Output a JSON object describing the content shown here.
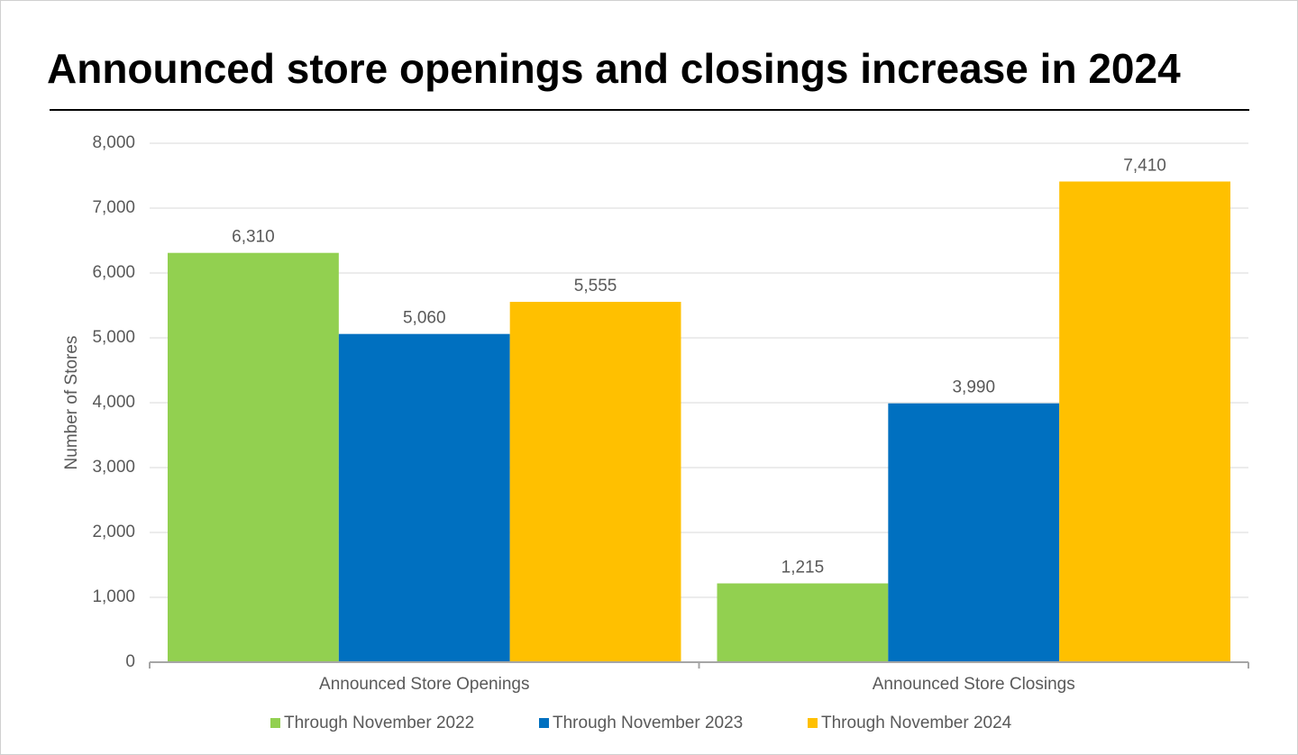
{
  "chart_data": {
    "type": "bar",
    "title": "Announced store openings and closings increase in 2024",
    "y_label": "Number of Stores",
    "categories": [
      "Announced Store Openings",
      "Announced Store Closings"
    ],
    "series": [
      {
        "name": "Through November 2022",
        "color": "#92d050",
        "values": [
          6310,
          1215
        ],
        "value_labels": [
          "6,310",
          "1,215"
        ]
      },
      {
        "name": "Through November 2023",
        "color": "#0070c0",
        "values": [
          5060,
          3990
        ],
        "value_labels": [
          "5,060",
          "3,990"
        ]
      },
      {
        "name": "Through November 2024",
        "color": "#ffc000",
        "values": [
          5555,
          7410
        ],
        "value_labels": [
          "5,555",
          "7,410"
        ]
      }
    ],
    "ylim": [
      0,
      8000
    ],
    "yticks": [
      0,
      {
        "value": 1000,
        "label": "1,000"
      },
      {
        "value": 2000,
        "label": "2,000"
      },
      {
        "value": 3000,
        "label": "3,000"
      },
      {
        "value": 4000,
        "label": "4,000"
      },
      {
        "value": 5000,
        "label": "5,000"
      },
      {
        "value": 6000,
        "label": "6,000"
      },
      {
        "value": 7000,
        "label": "7,000"
      },
      {
        "value": 8000,
        "label": "8,000"
      }
    ],
    "grid": true,
    "legend": "bottom"
  }
}
